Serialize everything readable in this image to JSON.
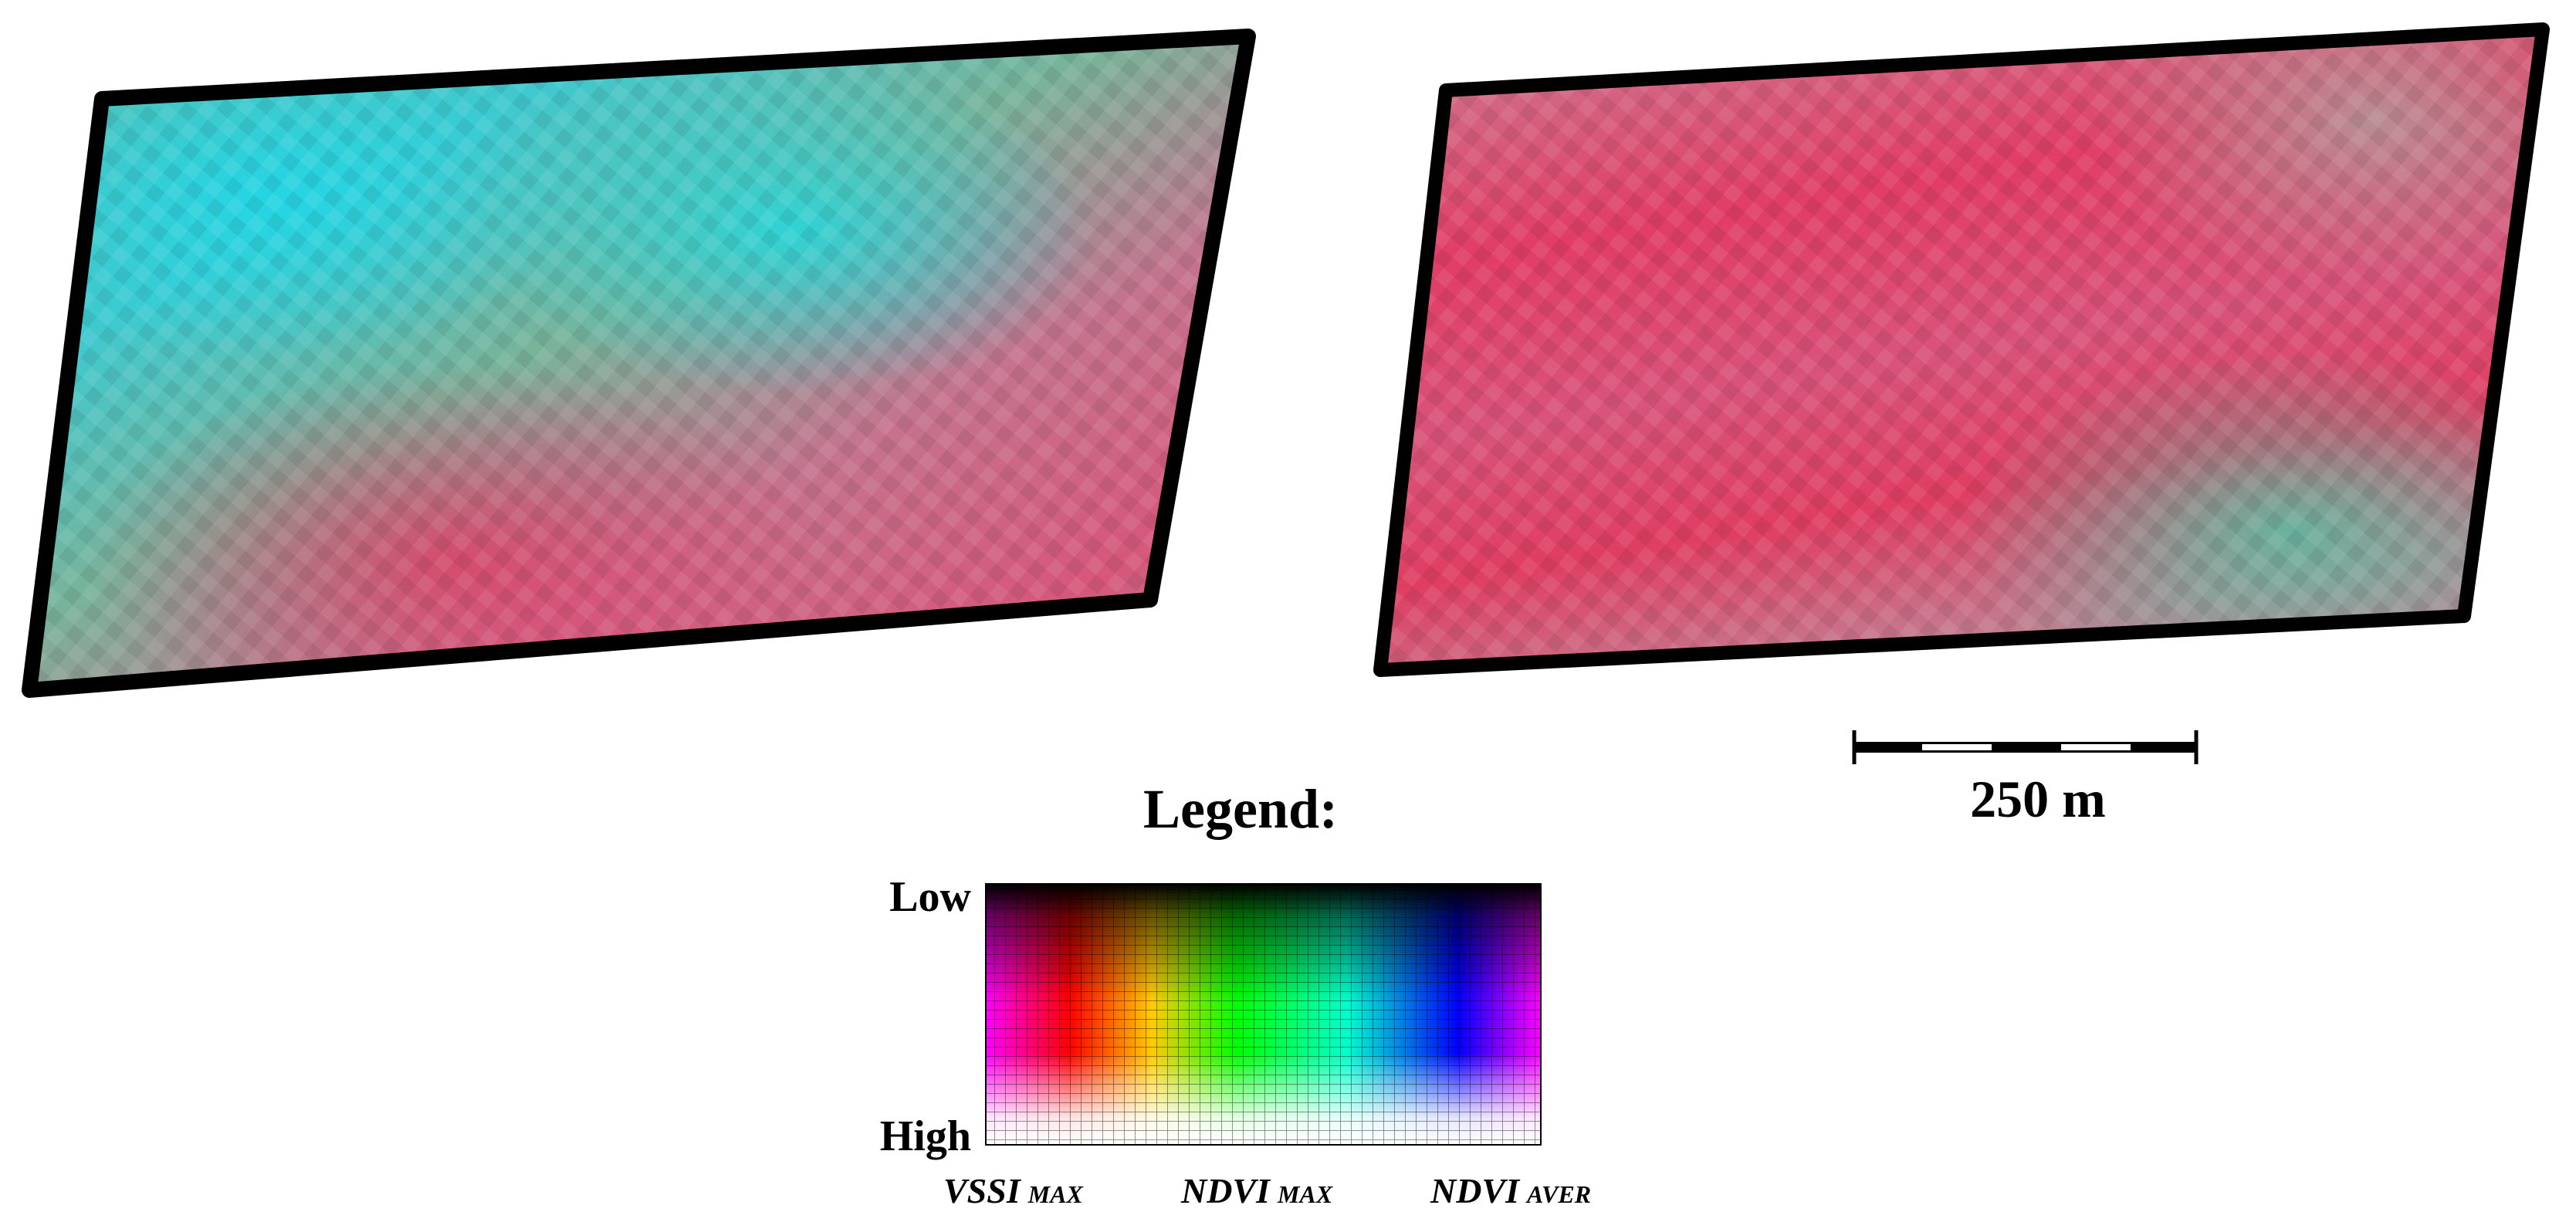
{
  "legend": {
    "title": "Legend:",
    "low": "Low",
    "high": "High",
    "axes": [
      {
        "name": "VSSI",
        "sub": "MAX"
      },
      {
        "name": "NDVI",
        "sub": "MAX"
      },
      {
        "name": "NDVI",
        "sub": "AVER"
      }
    ]
  },
  "scale_bar": {
    "label": "250 m"
  }
}
